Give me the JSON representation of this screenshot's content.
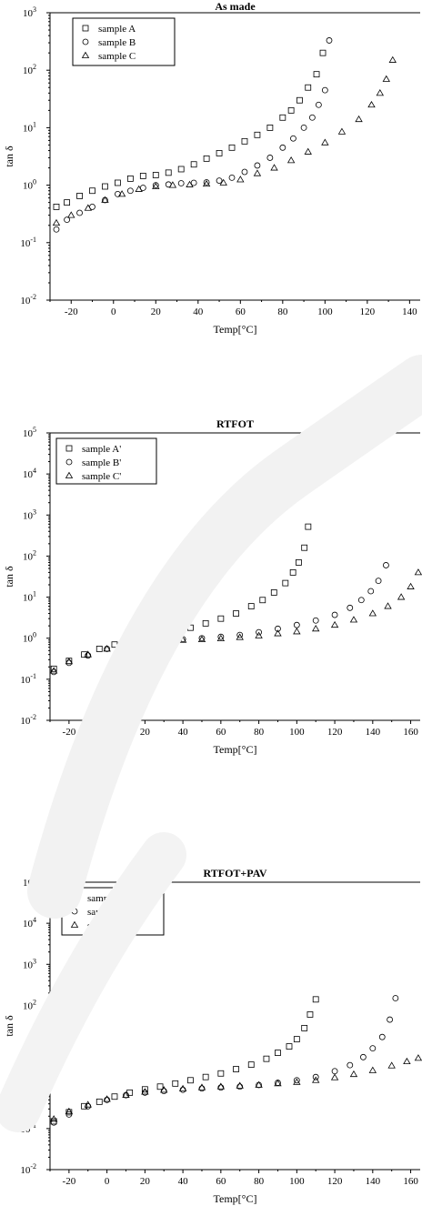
{
  "chart_data": [
    {
      "type": "scatter",
      "title": "As made",
      "xlabel": "Temp[°C]",
      "ylabel": "tan δ",
      "xlim": [
        -30,
        145
      ],
      "ylim": [
        0.01,
        1000
      ],
      "yscale": "log",
      "xticks": [
        -20,
        0,
        20,
        40,
        60,
        80,
        100,
        120,
        140
      ],
      "yticks": [
        {
          "v": 0.01,
          "b": "10",
          "e": "-2"
        },
        {
          "v": 0.1,
          "b": "10",
          "e": "-1"
        },
        {
          "v": 1,
          "b": "10",
          "e": "0"
        },
        {
          "v": 10,
          "b": "10",
          "e": "1"
        },
        {
          "v": 100,
          "b": "10",
          "e": "2"
        },
        {
          "v": 1000,
          "b": "10",
          "e": "3"
        }
      ],
      "legend_position": "top-left",
      "series": [
        {
          "name": "sample A",
          "marker": "square",
          "x": [
            -27,
            -22,
            -16,
            -10,
            -4,
            2,
            8,
            14,
            20,
            26,
            32,
            38,
            44,
            50,
            56,
            62,
            68,
            74,
            80,
            84,
            88,
            92,
            96,
            99
          ],
          "y": [
            0.42,
            0.5,
            0.65,
            0.8,
            0.95,
            1.1,
            1.3,
            1.45,
            1.5,
            1.65,
            1.9,
            2.3,
            2.9,
            3.6,
            4.5,
            5.8,
            7.5,
            10,
            15,
            20,
            30,
            50,
            85,
            200
          ]
        },
        {
          "name": "sample B",
          "marker": "circle",
          "x": [
            -27,
            -22,
            -16,
            -10,
            -4,
            2,
            8,
            14,
            20,
            26,
            32,
            38,
            44,
            50,
            56,
            62,
            68,
            74,
            80,
            85,
            90,
            94,
            97,
            100,
            102
          ],
          "y": [
            0.17,
            0.25,
            0.33,
            0.42,
            0.55,
            0.7,
            0.8,
            0.9,
            1.0,
            1.03,
            1.08,
            1.1,
            1.12,
            1.2,
            1.35,
            1.7,
            2.2,
            3.0,
            4.5,
            6.5,
            10,
            15,
            25,
            45,
            330
          ]
        },
        {
          "name": "sample C",
          "marker": "triangle",
          "x": [
            -27,
            -20,
            -12,
            -4,
            4,
            12,
            20,
            28,
            36,
            44,
            52,
            60,
            68,
            76,
            84,
            92,
            100,
            108,
            116,
            122,
            126,
            129,
            132
          ],
          "y": [
            0.22,
            0.3,
            0.4,
            0.55,
            0.7,
            0.85,
            0.95,
            1.0,
            1.02,
            1.05,
            1.1,
            1.25,
            1.6,
            2.0,
            2.7,
            3.8,
            5.5,
            8.5,
            14,
            25,
            40,
            70,
            150
          ]
        }
      ]
    },
    {
      "type": "scatter",
      "title": "RTFOT",
      "xlabel": "Temp[°C]",
      "ylabel": "tan δ",
      "xlim": [
        -30,
        165
      ],
      "ylim": [
        0.01,
        100000
      ],
      "yscale": "log",
      "xticks": [
        -20,
        0,
        20,
        40,
        60,
        80,
        100,
        120,
        140,
        160
      ],
      "yticks": [
        {
          "v": 0.01,
          "b": "10",
          "e": "-2"
        },
        {
          "v": 0.1,
          "b": "10",
          "e": "-1"
        },
        {
          "v": 1,
          "b": "10",
          "e": "0"
        },
        {
          "v": 10,
          "b": "10",
          "e": "1"
        },
        {
          "v": 100,
          "b": "10",
          "e": "2"
        },
        {
          "v": 1000,
          "b": "10",
          "e": "3"
        },
        {
          "v": 10000,
          "b": "10",
          "e": "4"
        },
        {
          "v": 100000,
          "b": "10",
          "e": "5"
        }
      ],
      "legend_position": "top-left",
      "series": [
        {
          "name": "sample A'",
          "marker": "square",
          "x": [
            -28,
            -20,
            -12,
            -4,
            4,
            12,
            20,
            28,
            36,
            44,
            52,
            60,
            68,
            76,
            82,
            88,
            94,
            98,
            101,
            104,
            106
          ],
          "y": [
            0.18,
            0.28,
            0.4,
            0.55,
            0.7,
            0.85,
            1.0,
            1.2,
            1.45,
            1.8,
            2.3,
            3.0,
            4.0,
            6.0,
            8.5,
            13,
            22,
            40,
            70,
            160,
            520
          ]
        },
        {
          "name": "sample B'",
          "marker": "circle",
          "x": [
            -28,
            -20,
            -10,
            0,
            10,
            20,
            30,
            40,
            50,
            60,
            70,
            80,
            90,
            100,
            110,
            120,
            128,
            134,
            139,
            143,
            147
          ],
          "y": [
            0.15,
            0.25,
            0.38,
            0.55,
            0.7,
            0.8,
            0.9,
            0.95,
            1.0,
            1.08,
            1.2,
            1.4,
            1.7,
            2.1,
            2.7,
            3.7,
            5.5,
            8.5,
            14,
            25,
            60
          ]
        },
        {
          "name": "sample C'",
          "marker": "triangle",
          "x": [
            -28,
            -20,
            -10,
            0,
            10,
            20,
            30,
            40,
            50,
            60,
            70,
            80,
            90,
            100,
            110,
            120,
            130,
            140,
            148,
            155,
            160,
            164
          ],
          "y": [
            0.16,
            0.27,
            0.4,
            0.55,
            0.68,
            0.78,
            0.85,
            0.9,
            0.93,
            0.98,
            1.05,
            1.15,
            1.3,
            1.45,
            1.7,
            2.1,
            2.8,
            4.0,
            6.0,
            10,
            18,
            40
          ]
        }
      ]
    },
    {
      "type": "scatter",
      "title": "RTFOT+PAV",
      "xlabel": "Temp[°C]",
      "ylabel": "tan δ",
      "xlim": [
        -30,
        165
      ],
      "ylim": [
        0.01,
        100000
      ],
      "yscale": "log",
      "xticks": [
        -20,
        0,
        20,
        40,
        60,
        80,
        100,
        120,
        140,
        160
      ],
      "yticks": [
        {
          "v": 0.01,
          "b": "10",
          "e": "-2"
        },
        {
          "v": 0.1,
          "b": "10",
          "e": "-1"
        },
        {
          "v": 1,
          "b": "10",
          "e": "0"
        },
        {
          "v": 10,
          "b": "10",
          "e": "1"
        },
        {
          "v": 100,
          "b": "10",
          "e": "2"
        },
        {
          "v": 1000,
          "b": "10",
          "e": "3"
        },
        {
          "v": 10000,
          "b": "10",
          "e": "4"
        },
        {
          "v": 100000,
          "b": "10",
          "e": "5"
        }
      ],
      "legend_position": "top-left",
      "series": [
        {
          "name": "sample A''",
          "marker": "square",
          "x": [
            -28,
            -20,
            -12,
            -4,
            4,
            12,
            20,
            28,
            36,
            44,
            52,
            60,
            68,
            76,
            84,
            90,
            96,
            100,
            104,
            107,
            110
          ],
          "y": [
            0.15,
            0.25,
            0.35,
            0.45,
            0.6,
            0.75,
            0.9,
            1.05,
            1.25,
            1.5,
            1.8,
            2.2,
            2.8,
            3.6,
            5.0,
            7.0,
            10,
            15,
            28,
            60,
            140
          ]
        },
        {
          "name": "sample B''",
          "marker": "circle",
          "x": [
            -28,
            -20,
            -10,
            0,
            10,
            20,
            30,
            40,
            50,
            60,
            70,
            80,
            90,
            100,
            110,
            120,
            128,
            135,
            140,
            145,
            149,
            152
          ],
          "y": [
            0.14,
            0.22,
            0.35,
            0.5,
            0.65,
            0.75,
            0.82,
            0.88,
            0.95,
            1.0,
            1.05,
            1.15,
            1.3,
            1.5,
            1.8,
            2.5,
            3.5,
            5.5,
            9.0,
            17,
            45,
            150
          ]
        },
        {
          "name": "sample C''",
          "marker": "triangle",
          "x": [
            -28,
            -20,
            -10,
            0,
            10,
            20,
            30,
            40,
            50,
            60,
            70,
            80,
            90,
            100,
            110,
            120,
            130,
            140,
            150,
            158,
            164
          ],
          "y": [
            0.17,
            0.26,
            0.38,
            0.52,
            0.65,
            0.78,
            0.87,
            0.93,
            1.0,
            1.05,
            1.1,
            1.15,
            1.25,
            1.35,
            1.5,
            1.75,
            2.1,
            2.6,
            3.4,
            4.3,
            5.2
          ]
        }
      ]
    }
  ]
}
